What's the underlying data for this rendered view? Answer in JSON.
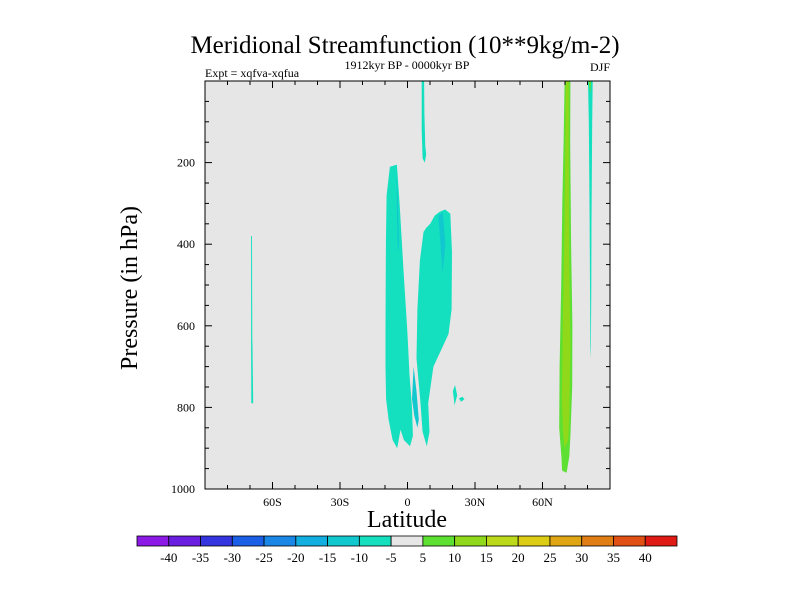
{
  "chart_data": {
    "type": "contour",
    "title": "Meridional Streamfunction (10**9kg/m-2)",
    "subtitle_left": "Expt = xqfva-xqfua",
    "subtitle_center": "1912kyr BP - 0000kyr BP",
    "subtitle_right": "DJF",
    "xlabel": "Latitude",
    "ylabel": "Pressure (in hPa)",
    "xlim": [
      -90,
      90
    ],
    "ylim": [
      1000,
      0
    ],
    "x_ticks": [
      {
        "value": -60,
        "label": "60S"
      },
      {
        "value": -30,
        "label": "30S"
      },
      {
        "value": 0,
        "label": "0"
      },
      {
        "value": 30,
        "label": "30N"
      },
      {
        "value": 60,
        "label": "60N"
      }
    ],
    "y_ticks": [
      {
        "value": 200,
        "label": "200"
      },
      {
        "value": 400,
        "label": "400"
      },
      {
        "value": 600,
        "label": "600"
      },
      {
        "value": 800,
        "label": "800"
      },
      {
        "value": 1000,
        "label": "1000"
      }
    ],
    "background_color": "#e6e6e6",
    "colorbar": {
      "labels": [
        "-40",
        "-35",
        "-30",
        "-25",
        "-20",
        "-15",
        "-10",
        "-5",
        "5",
        "10",
        "15",
        "20",
        "25",
        "30",
        "35",
        "40"
      ],
      "colors": [
        "#8c1ae6",
        "#6a1fe0",
        "#3535e0",
        "#1a5fe6",
        "#1a86e6",
        "#12aee0",
        "#12c8cf",
        "#14e0bf",
        "#e6e6e6",
        "#5ee033",
        "#8fd91a",
        "#bcd91a",
        "#dccd14",
        "#e0a514",
        "#e07d14",
        "#e05014",
        "#e01a14"
      ]
    },
    "regions": [
      {
        "name": "sh-high-lat-strip",
        "level": "-5 to -10",
        "color": "#14e0bf",
        "points": [
          [
            -69.5,
            380
          ],
          [
            -69.1,
            380
          ],
          [
            -69.0,
            630
          ],
          [
            -68.9,
            650
          ],
          [
            -68.6,
            790
          ],
          [
            -69.4,
            790
          ],
          [
            -69.5,
            650
          ]
        ]
      },
      {
        "name": "tropical-cell-west",
        "level": "-5 to -10",
        "color": "#14e0bf",
        "points": [
          [
            -9.5,
            780
          ],
          [
            -9.8,
            700
          ],
          [
            -9.8,
            600
          ],
          [
            -9.6,
            400
          ],
          [
            -9.3,
            280
          ],
          [
            -7.8,
            210
          ],
          [
            -4.7,
            205
          ],
          [
            -3.5,
            300
          ],
          [
            -1.8,
            460
          ],
          [
            0,
            620
          ],
          [
            0.9,
            720
          ],
          [
            2,
            800
          ],
          [
            2.4,
            870
          ],
          [
            1.1,
            895
          ],
          [
            -1.6,
            880
          ],
          [
            -3.1,
            855
          ],
          [
            -4.6,
            900
          ],
          [
            -6.6,
            880
          ],
          [
            -8.4,
            830
          ]
        ]
      },
      {
        "name": "tropical-cell-east",
        "level": "-5 to -10",
        "color": "#14e0bf",
        "points": [
          [
            4,
            680
          ],
          [
            4.4,
            560
          ],
          [
            5.5,
            440
          ],
          [
            7.1,
            370
          ],
          [
            8.3,
            360
          ],
          [
            10.1,
            350
          ],
          [
            12.1,
            330
          ],
          [
            14.4,
            320
          ],
          [
            16.7,
            315
          ],
          [
            19,
            325
          ],
          [
            19.8,
            420
          ],
          [
            19.6,
            560
          ],
          [
            18.2,
            620
          ],
          [
            14.9,
            660
          ],
          [
            11.5,
            700
          ],
          [
            9.2,
            790
          ],
          [
            9.8,
            860
          ],
          [
            8.6,
            895
          ],
          [
            6.7,
            860
          ],
          [
            5.8,
            790
          ]
        ]
      },
      {
        "name": "tropical-plume-upper",
        "level": "-5 to -10",
        "color": "#14e0bf",
        "points": [
          [
            6.3,
            0
          ],
          [
            7.4,
            0
          ],
          [
            7.5,
            80
          ],
          [
            7.9,
            160
          ],
          [
            8.3,
            180
          ],
          [
            7.7,
            200
          ],
          [
            6.7,
            190
          ],
          [
            6.3,
            120
          ]
        ]
      },
      {
        "name": "blob-20n",
        "level": "-5 to -10",
        "color": "#14e0bf",
        "points": [
          [
            20.2,
            760
          ],
          [
            21.1,
            745
          ],
          [
            22.1,
            770
          ],
          [
            21.4,
            785
          ],
          [
            20.9,
            795
          ],
          [
            20.6,
            780
          ]
        ]
      },
      {
        "name": "blob-25n",
        "level": "-5 to -10",
        "color": "#14e0bf",
        "points": [
          [
            22.9,
            778
          ],
          [
            24.4,
            774
          ],
          [
            25.3,
            780
          ],
          [
            23.8,
            786
          ]
        ]
      },
      {
        "name": "tropical-core-west",
        "level": "-10 to -15",
        "color": "#12c8cf",
        "points": [
          [
            -4.9,
            215
          ],
          [
            -4.2,
            300
          ],
          [
            -3.8,
            400
          ],
          [
            -4.3,
            420
          ],
          [
            -4.7,
            320
          ]
        ]
      },
      {
        "name": "tropical-core-low",
        "level": "-10 to -15",
        "color": "#12c8cf",
        "points": [
          [
            2.7,
            700
          ],
          [
            4,
            760
          ],
          [
            5,
            830
          ],
          [
            4.4,
            850
          ],
          [
            3,
            820
          ],
          [
            2,
            780
          ]
        ]
      },
      {
        "name": "tropical-core-east",
        "level": "-10 to -15",
        "color": "#12c8cf",
        "points": [
          [
            13.7,
            330
          ],
          [
            15.7,
            322
          ],
          [
            16.9,
            400
          ],
          [
            15.6,
            470
          ],
          [
            14.9,
            420
          ]
        ]
      },
      {
        "name": "nh-plume-wide",
        "level": "5 to 10",
        "color": "#5ee033",
        "points": [
          [
            69.8,
            0
          ],
          [
            72.4,
            0
          ],
          [
            72.3,
            150
          ],
          [
            72.7,
            400
          ],
          [
            73.3,
            600
          ],
          [
            73.2,
            750
          ],
          [
            72.4,
            870
          ],
          [
            71.9,
            920
          ],
          [
            70.7,
            960
          ],
          [
            68.7,
            955
          ],
          [
            68.4,
            920
          ],
          [
            67.4,
            850
          ],
          [
            67.6,
            700
          ],
          [
            68.3,
            500
          ],
          [
            68.8,
            300
          ],
          [
            69.4,
            150
          ]
        ]
      },
      {
        "name": "nh-plume-core",
        "level": "10 to 15",
        "color": "#8fd91a",
        "points": [
          [
            70.4,
            0
          ],
          [
            71.7,
            0
          ],
          [
            71.7,
            200
          ],
          [
            71.9,
            450
          ],
          [
            72.4,
            650
          ],
          [
            71.9,
            820
          ],
          [
            71.4,
            880
          ],
          [
            69.8,
            900
          ],
          [
            69.1,
            860
          ],
          [
            68.6,
            780
          ],
          [
            69,
            600
          ],
          [
            69.6,
            420
          ],
          [
            70.1,
            200
          ]
        ]
      },
      {
        "name": "nh-thin-column",
        "level": "-5 to -10",
        "color": "#14e0bf",
        "points": [
          [
            80.2,
            0
          ],
          [
            82.3,
            0
          ],
          [
            82.1,
            100
          ],
          [
            81.8,
            350
          ],
          [
            81.7,
            500
          ],
          [
            81.5,
            650
          ],
          [
            81.3,
            680
          ],
          [
            81.1,
            500
          ],
          [
            80.9,
            300
          ],
          [
            80.6,
            100
          ]
        ]
      },
      {
        "name": "nh-column-top",
        "level": "5 to 10",
        "color": "#5ee033",
        "points": [
          [
            80.4,
            0
          ],
          [
            81.6,
            0
          ],
          [
            81.2,
            30
          ]
        ]
      }
    ]
  }
}
